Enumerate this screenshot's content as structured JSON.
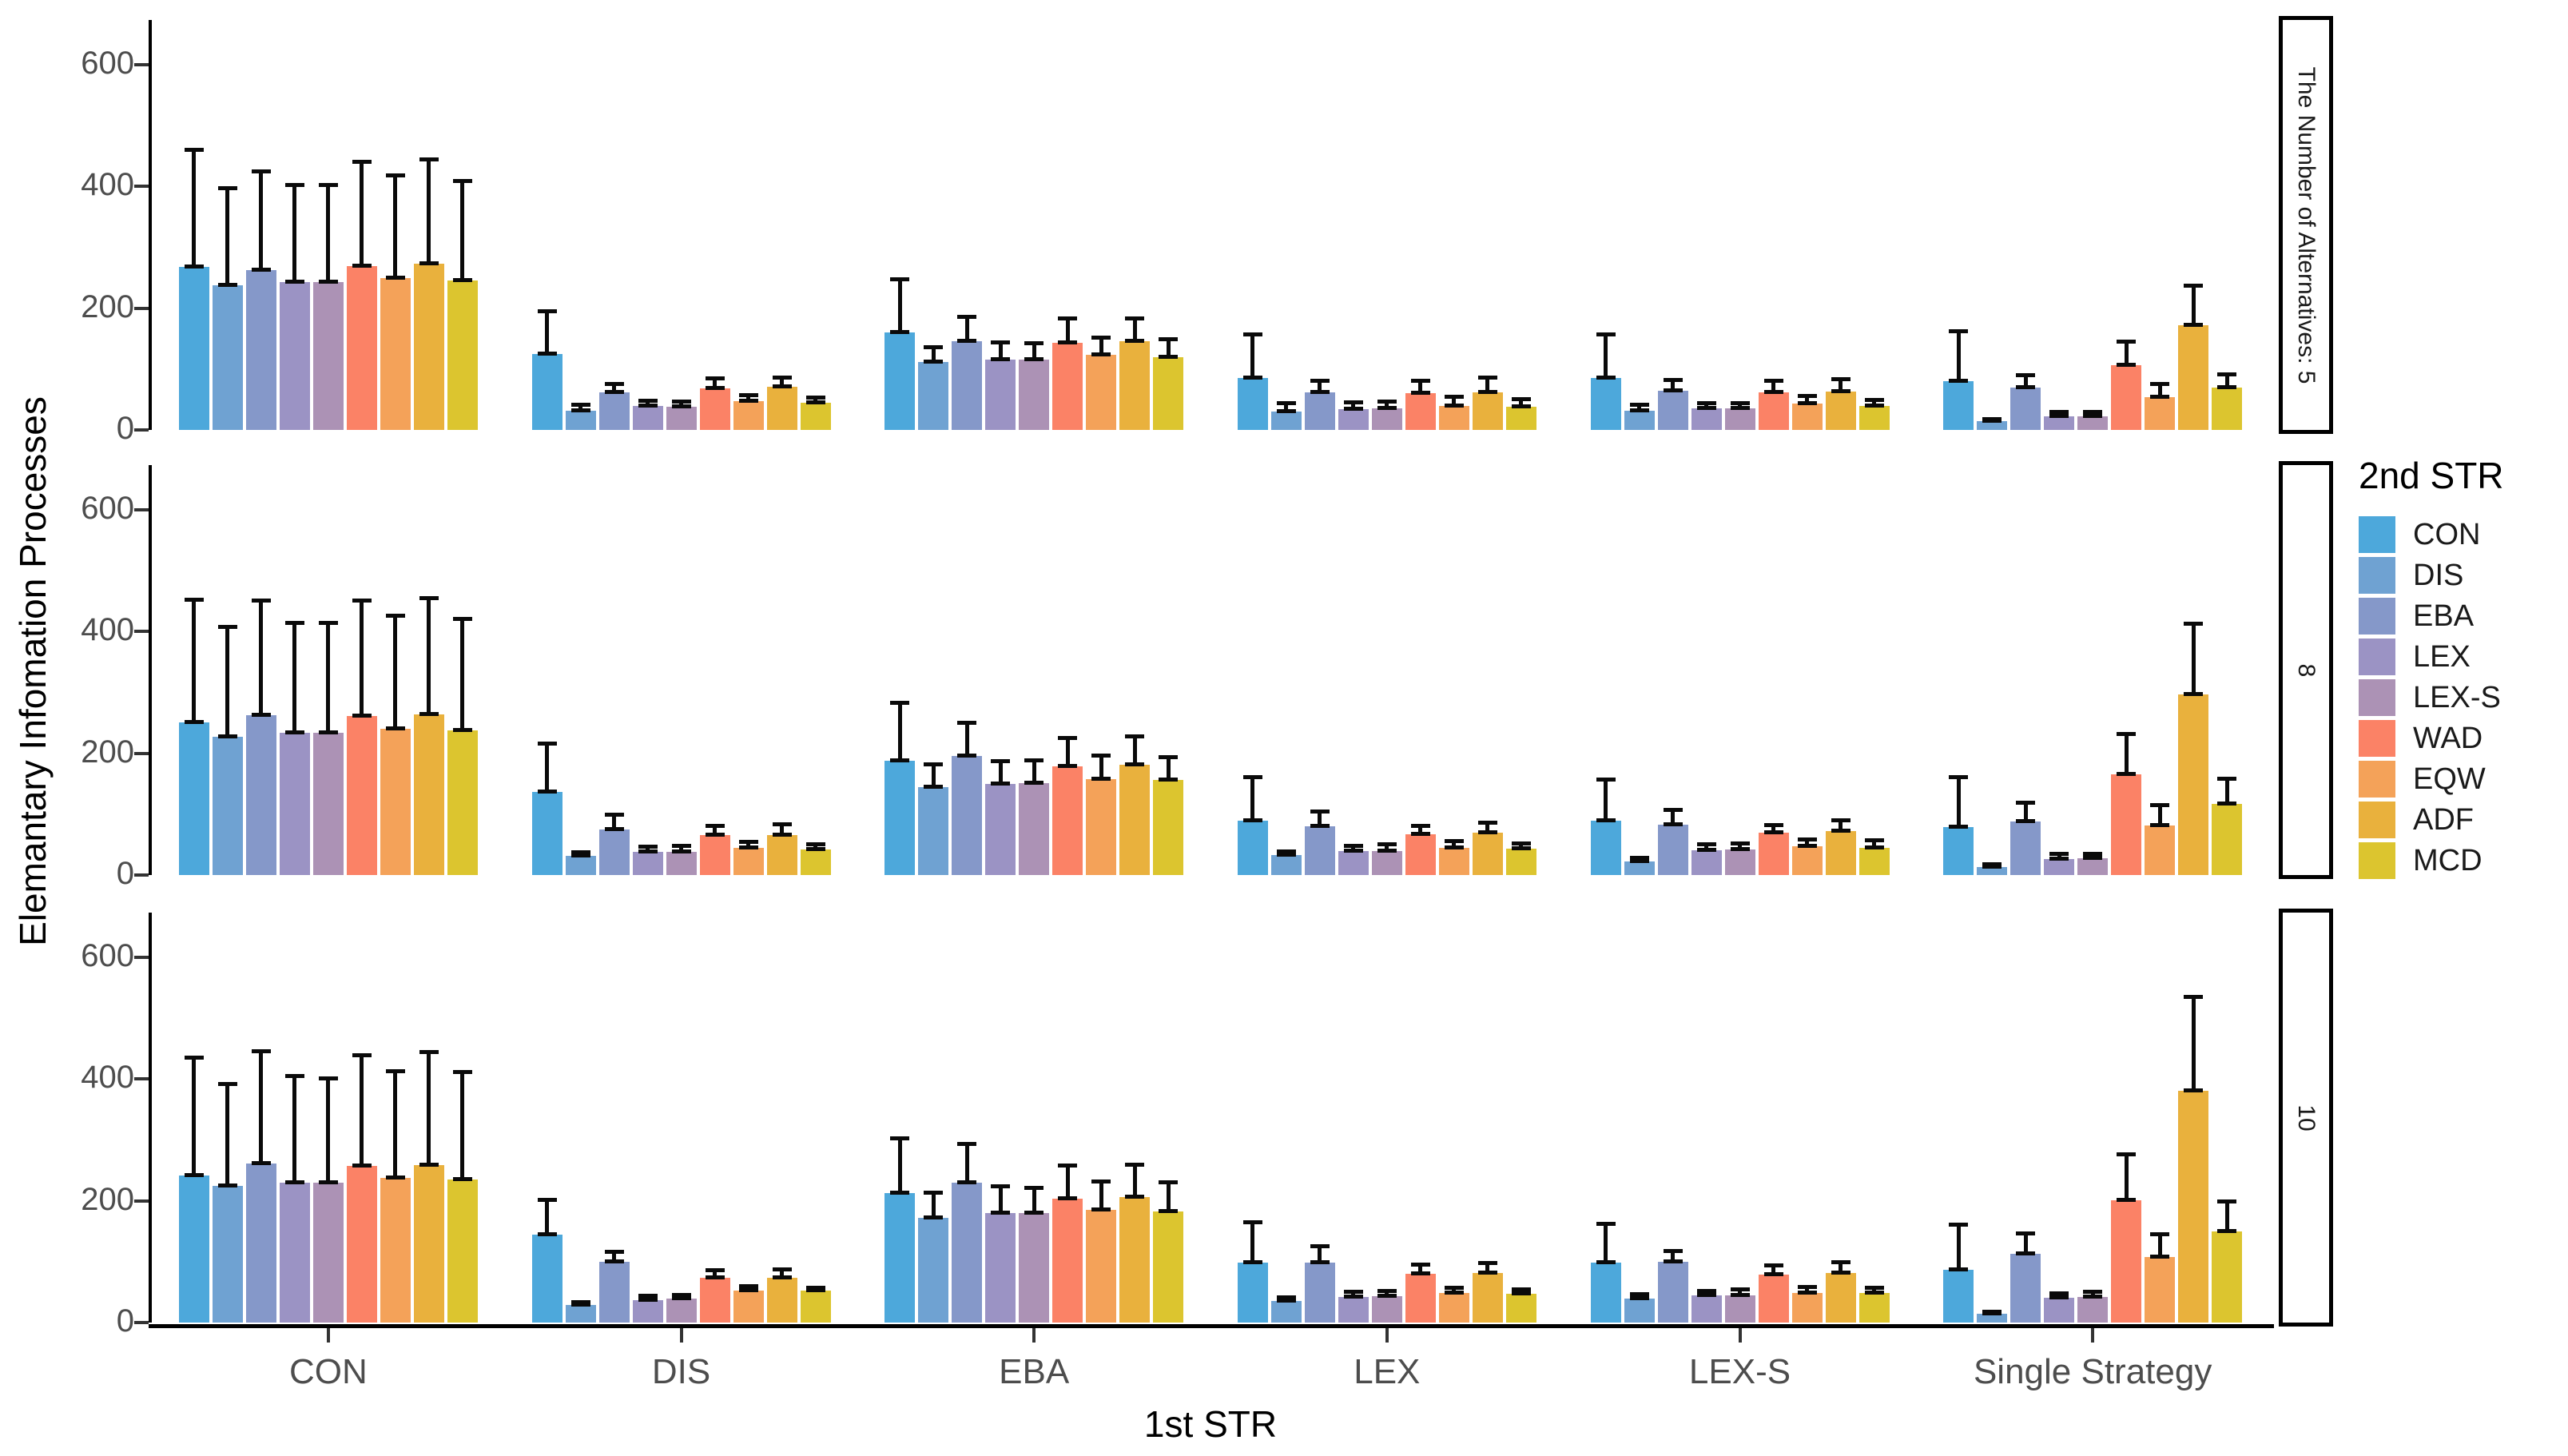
{
  "axes": {
    "y_title": "Elemantary Infomation Processes",
    "x_title": "1st STR",
    "y_tick_labels": [
      "0",
      "200",
      "400",
      "600"
    ]
  },
  "legend": {
    "title": "2nd STR",
    "items": [
      "CON",
      "DIS",
      "EBA",
      "LEX",
      "LEX-S",
      "WAD",
      "EQW",
      "ADF",
      "MCD"
    ]
  },
  "colors": {
    "CON": "#4DA8DB",
    "DIS": "#6FA2D2",
    "EBA": "#8598C9",
    "LEX": "#9B93C4",
    "LEX-S": "#AC92B5",
    "WAD": "#FB8266",
    "EQW": "#F4A259",
    "ADF": "#E9B13D",
    "MCD": "#DCC52F",
    "axis": "#000000",
    "tick_text": "#4d4d4d",
    "error_bar": "#0a0a0a"
  },
  "chart_data": {
    "type": "bar",
    "title": "",
    "xlabel": "1st STR",
    "ylabel": "Elemantary Infomation Processes",
    "ylim": [
      0,
      660
    ],
    "yticks": [
      0,
      200,
      400,
      600
    ],
    "grid": false,
    "error_bars": "upper, with caps at mean and at mean+error",
    "legend_title": "2nd STR",
    "legend_position": "right",
    "facet_variable": "The Number of Alternatives",
    "categories": [
      "CON",
      "DIS",
      "EBA",
      "LEX",
      "LEX-S",
      "Single Strategy"
    ],
    "series": [
      "CON",
      "DIS",
      "EBA",
      "LEX",
      "LEX-S",
      "WAD",
      "EQW",
      "ADF",
      "MCD"
    ],
    "panels": [
      {
        "facet_label": "The Number of Alternatives: 5",
        "groups": [
          {
            "category": "CON",
            "values": [
              268,
              237,
              262,
              243,
              243,
              269,
              250,
              273,
              246
            ],
            "upper": [
              460,
              397,
              425,
              403,
              403,
              441,
              418,
              445,
              410
            ]
          },
          {
            "category": "DIS",
            "values": [
              125,
              31,
              62,
              39,
              38,
              68,
              47,
              71,
              44
            ],
            "upper": [
              196,
              42,
              76,
              48,
              47,
              85,
              58,
              87,
              54
            ]
          },
          {
            "category": "EBA",
            "values": [
              160,
              112,
              146,
              115,
              116,
              143,
              123,
              146,
              120
            ],
            "upper": [
              248,
              136,
              187,
              144,
              143,
              184,
              152,
              184,
              150
            ]
          },
          {
            "category": "LEX",
            "values": [
              85,
              30,
              62,
              34,
              35,
              61,
              40,
              62,
              38
            ],
            "upper": [
              158,
              44,
              82,
              46,
              47,
              82,
              55,
              86,
              51
            ]
          },
          {
            "category": "LEX-S",
            "values": [
              85,
              31,
              64,
              36,
              35,
              62,
              43,
              63,
              39
            ],
            "upper": [
              158,
              42,
              83,
              45,
              44,
              82,
              56,
              84,
              50
            ]
          },
          {
            "category": "Single Strategy",
            "values": [
              80,
              14,
              70,
              22,
              22,
              106,
              54,
              172,
              69
            ],
            "upper": [
              163,
              19,
              90,
              30,
              30,
              146,
              76,
              237,
              92
            ]
          }
        ]
      },
      {
        "facet_label": "8",
        "groups": [
          {
            "category": "CON",
            "values": [
              251,
              227,
              262,
              234,
              234,
              261,
              240,
              264,
              237
            ],
            "upper": [
              453,
              408,
              451,
              415,
              415,
              452,
              427,
              455,
              421
            ]
          },
          {
            "category": "DIS",
            "values": [
              136,
              31,
              75,
              38,
              38,
              65,
              45,
              66,
              42
            ],
            "upper": [
              216,
              38,
              100,
              47,
              48,
              82,
              55,
              84,
              51
            ]
          },
          {
            "category": "EBA",
            "values": [
              188,
              145,
              195,
              149,
              151,
              179,
              157,
              181,
              156
            ],
            "upper": [
              283,
              182,
              251,
              188,
              189,
              226,
              197,
              229,
              194
            ]
          },
          {
            "category": "LEX",
            "values": [
              89,
              33,
              80,
              40,
              40,
              67,
              45,
              70,
              43
            ],
            "upper": [
              162,
              40,
              105,
              48,
              51,
              81,
              56,
              86,
              53
            ]
          },
          {
            "category": "LEX-S",
            "values": [
              89,
              22,
              83,
              41,
              42,
              69,
              47,
              72,
              44
            ],
            "upper": [
              158,
              29,
              107,
              51,
              53,
              83,
              59,
              91,
              58
            ]
          },
          {
            "category": "Single Strategy",
            "values": [
              79,
              13,
              88,
              26,
              28,
              165,
              82,
              297,
              117
            ],
            "upper": [
              162,
              18,
              119,
              35,
              36,
              232,
              116,
              414,
              159
            ]
          }
        ]
      },
      {
        "facet_label": "10",
        "groups": [
          {
            "category": "CON",
            "values": [
              242,
              225,
              261,
              230,
              230,
              257,
              238,
              258,
              235
            ],
            "upper": [
              436,
              392,
              446,
              405,
              402,
              440,
              414,
              445,
              412
            ]
          },
          {
            "category": "DIS",
            "values": [
              145,
              29,
              100,
              37,
              39,
              74,
              53,
              74,
              52
            ],
            "upper": [
              202,
              34,
              117,
              44,
              46,
              86,
              61,
              88,
              58
            ]
          },
          {
            "category": "EBA",
            "values": [
              212,
              172,
              230,
              180,
              180,
              203,
              185,
              206,
              183
            ],
            "upper": [
              303,
              214,
              294,
              225,
              222,
              258,
              232,
              260,
              231
            ]
          },
          {
            "category": "LEX",
            "values": [
              99,
              36,
              98,
              42,
              43,
              80,
              48,
              81,
              47
            ],
            "upper": [
              165,
              42,
              126,
              51,
              52,
              96,
              58,
              98,
              55
            ]
          },
          {
            "category": "LEX-S",
            "values": [
              98,
              39,
              100,
              44,
              45,
              79,
              49,
              82,
              48
            ],
            "upper": [
              163,
              47,
              118,
              53,
              55,
              95,
              59,
              100,
              58
            ]
          },
          {
            "category": "Single Strategy",
            "values": [
              86,
              14,
              113,
              41,
              42,
              201,
              108,
              380,
              150
            ],
            "upper": [
              162,
              18,
              147,
              48,
              51,
              277,
              146,
              535,
              199
            ]
          }
        ]
      }
    ]
  }
}
